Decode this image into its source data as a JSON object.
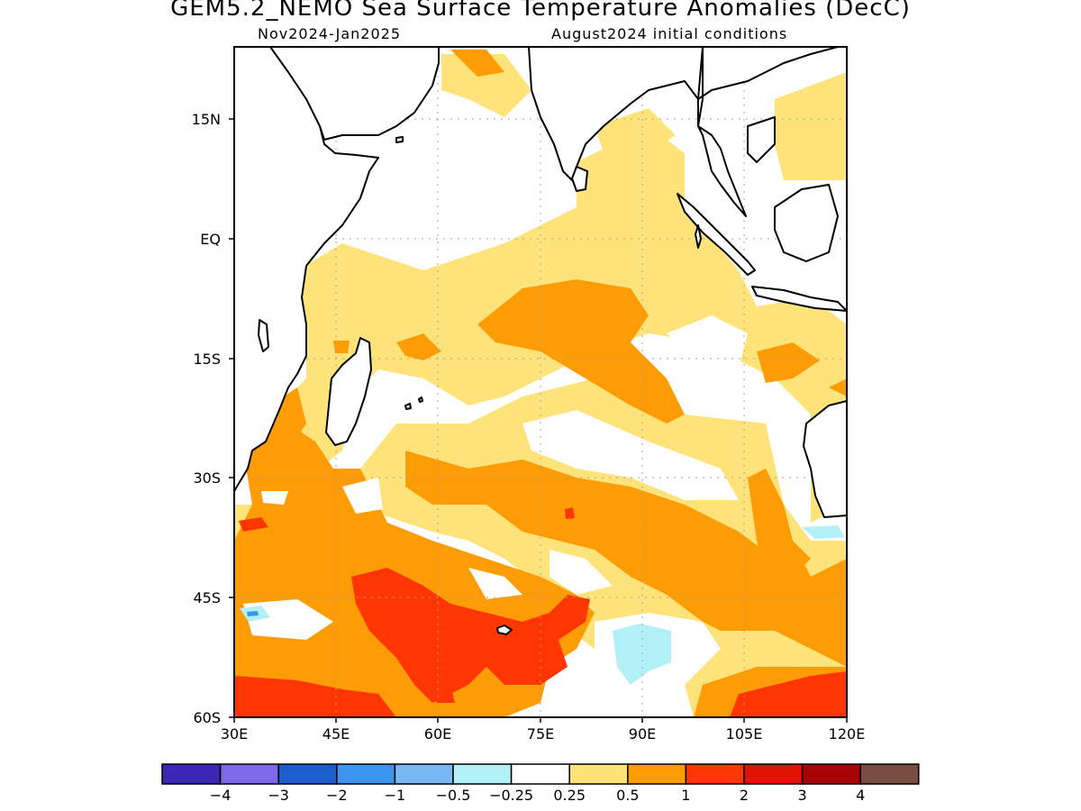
{
  "header": {
    "title": "GEM5.2_NEMO Sea Surface Temperature Anomalies (DecC)",
    "period": "Nov2024-Jan2025",
    "initial_conditions": "August2024 initial conditions"
  },
  "map": {
    "region": "Indian Ocean",
    "lon_range": [
      30,
      120
    ],
    "lat_range": [
      -60,
      24
    ],
    "lat_labels": [
      "15N",
      "EQ",
      "15S",
      "30S",
      "45S",
      "60S"
    ],
    "lon_labels": [
      "30E",
      "45E",
      "60E",
      "75E",
      "90E",
      "105E",
      "120E"
    ],
    "grid": "dotted"
  },
  "legend": {
    "colors": [
      "#3a28b4",
      "#7e6ae8",
      "#1b5fcd",
      "#3c95ee",
      "#78b8f5",
      "#b2f0f8",
      "#ffffff",
      "#fde37a",
      "#fd9c05",
      "#ff3502",
      "#e01404",
      "#a60404",
      "#7a4d42"
    ],
    "labels": [
      "−4",
      "−3",
      "−2",
      "−1",
      "−0.5",
      "−0.25",
      "0.25",
      "0.5",
      "1",
      "2",
      "3",
      "4"
    ]
  }
}
